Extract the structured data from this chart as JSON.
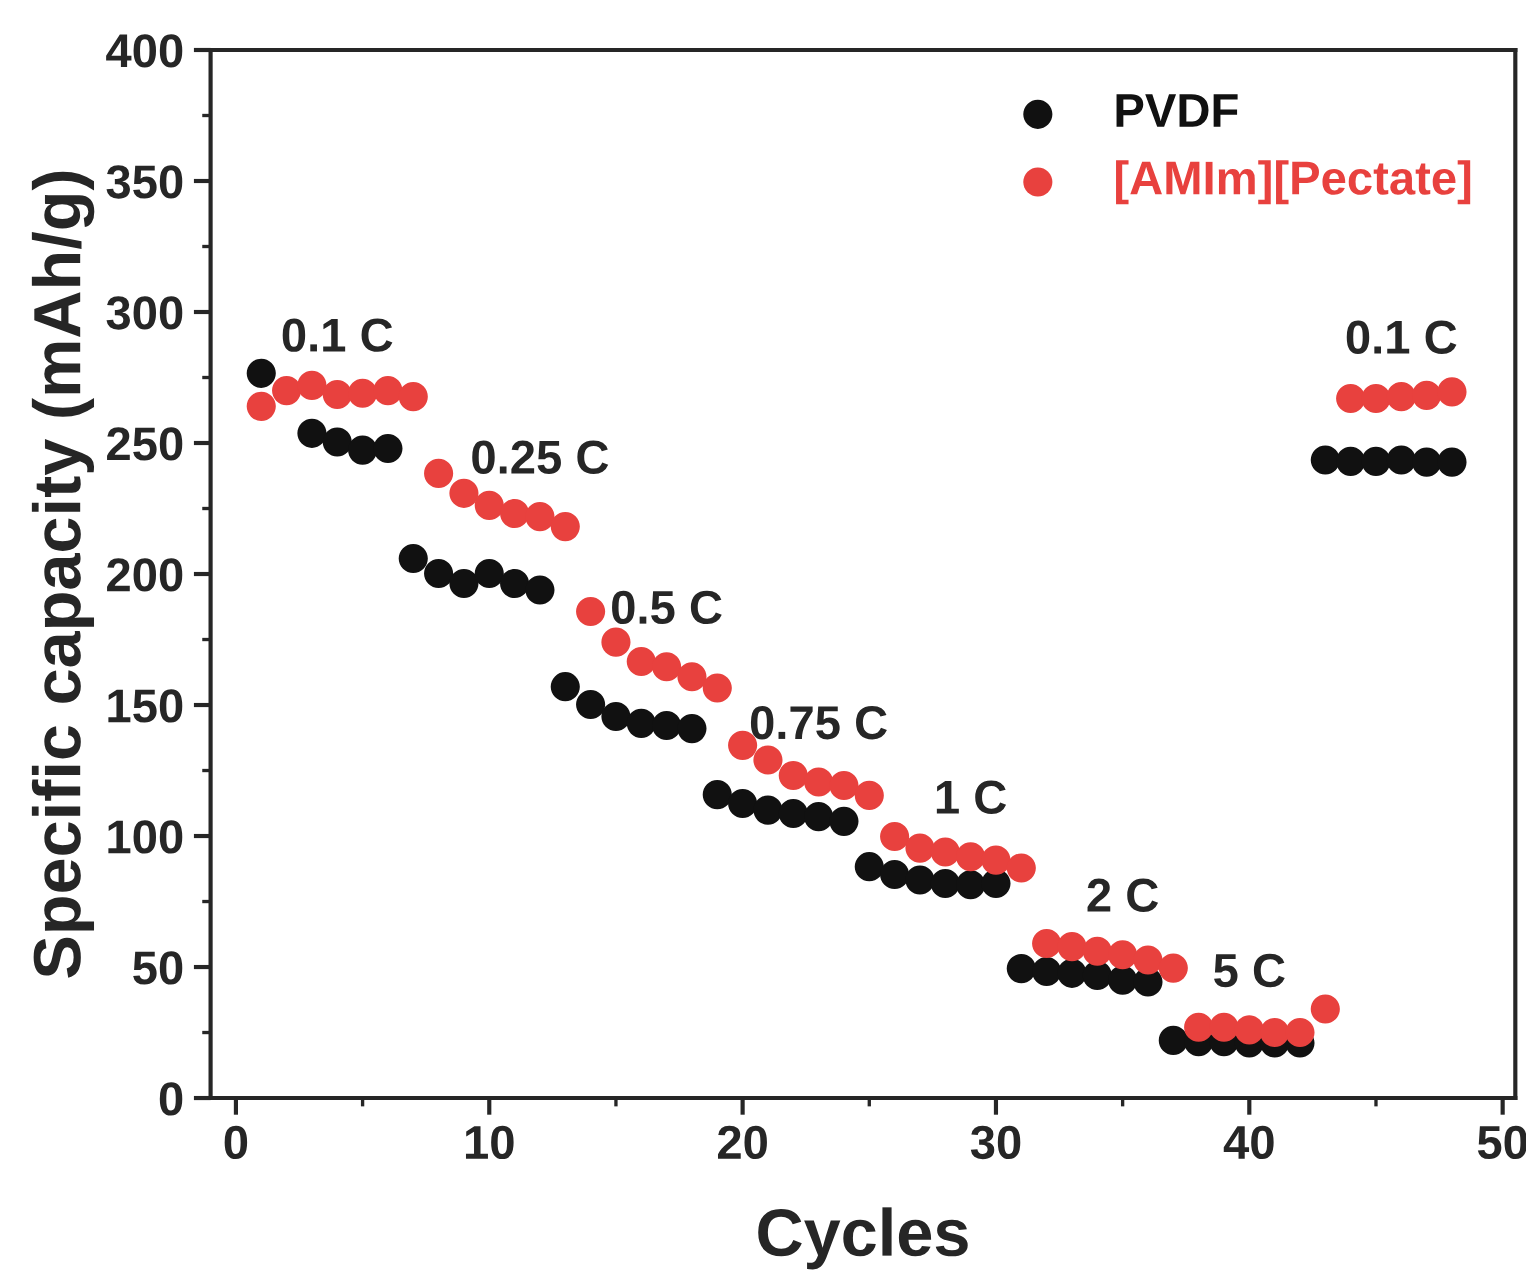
{
  "chart_data": {
    "type": "scatter",
    "xlabel": "Cycles",
    "ylabel": "Specific capacity (mAh/g)",
    "x": [
      1,
      2,
      3,
      4,
      5,
      6,
      7,
      8,
      9,
      10,
      11,
      12,
      13,
      14,
      15,
      16,
      17,
      18,
      19,
      20,
      21,
      22,
      23,
      24,
      25,
      26,
      27,
      28,
      29,
      30,
      31,
      32,
      33,
      34,
      35,
      36,
      37,
      38,
      39,
      40,
      41,
      42,
      43,
      44,
      45,
      46,
      47,
      48
    ],
    "series": [
      {
        "name": "PVDF",
        "color": "#111111",
        "values": [
          276.6,
          null,
          253.7,
          250.4,
          247.3,
          247.9,
          205.9,
          200.2,
          196.4,
          200.2,
          196.4,
          193.9,
          157,
          150.2,
          145.6,
          143,
          142.2,
          141,
          115.8,
          112.4,
          109.9,
          108.6,
          107.4,
          105.6,
          88.3,
          85.3,
          83.2,
          81.9,
          81.4,
          81.9,
          49.4,
          48.3,
          47.6,
          46.8,
          45,
          44.3,
          22,
          21.5,
          21.5,
          21,
          21,
          21,
          243.5,
          243,
          243,
          243.5,
          242.7,
          242.7
        ]
      },
      {
        "name": "[AMIm][Pectate]",
        "color": "#e8413e",
        "values": [
          264,
          270,
          272,
          268.5,
          269,
          270,
          267.7,
          238.4,
          230.8,
          226.2,
          223.1,
          221.9,
          218.1,
          185.7,
          174,
          166.6,
          164.6,
          160.8,
          156.5,
          134.6,
          129,
          123.1,
          120.6,
          119.3,
          115.5,
          99.8,
          95.4,
          93.9,
          92.1,
          90.8,
          87.8,
          59,
          57.8,
          56,
          54.7,
          52.7,
          49.6,
          27,
          27,
          26,
          25,
          25,
          34,
          267,
          267,
          267.7,
          268.2,
          269.5
        ]
      }
    ],
    "annotations": [
      {
        "text": "0.1 C",
        "x": 4,
        "y": 268.5
      },
      {
        "text": "0.25 C",
        "x": 12,
        "y": 221.9
      },
      {
        "text": "0.5 C",
        "x": 17,
        "y": 164.6
      },
      {
        "text": "0.75 C",
        "x": 23,
        "y": 120.6
      },
      {
        "text": "1 C",
        "x": 29,
        "y": 92.1
      },
      {
        "text": "2 C",
        "x": 35,
        "y": 54.7
      },
      {
        "text": "5 C",
        "x": 40,
        "y": 26
      },
      {
        "text": "0.1 C",
        "x": 46,
        "y": 267.7
      }
    ],
    "xlim": [
      -1,
      50.5
    ],
    "ylim": [
      0,
      400
    ],
    "xticks": [
      0,
      10,
      20,
      30,
      40,
      50
    ],
    "yticks": [
      0,
      50,
      100,
      150,
      200,
      250,
      300,
      350,
      400
    ],
    "grid": false,
    "legend": "top right",
    "marker": "circle"
  }
}
